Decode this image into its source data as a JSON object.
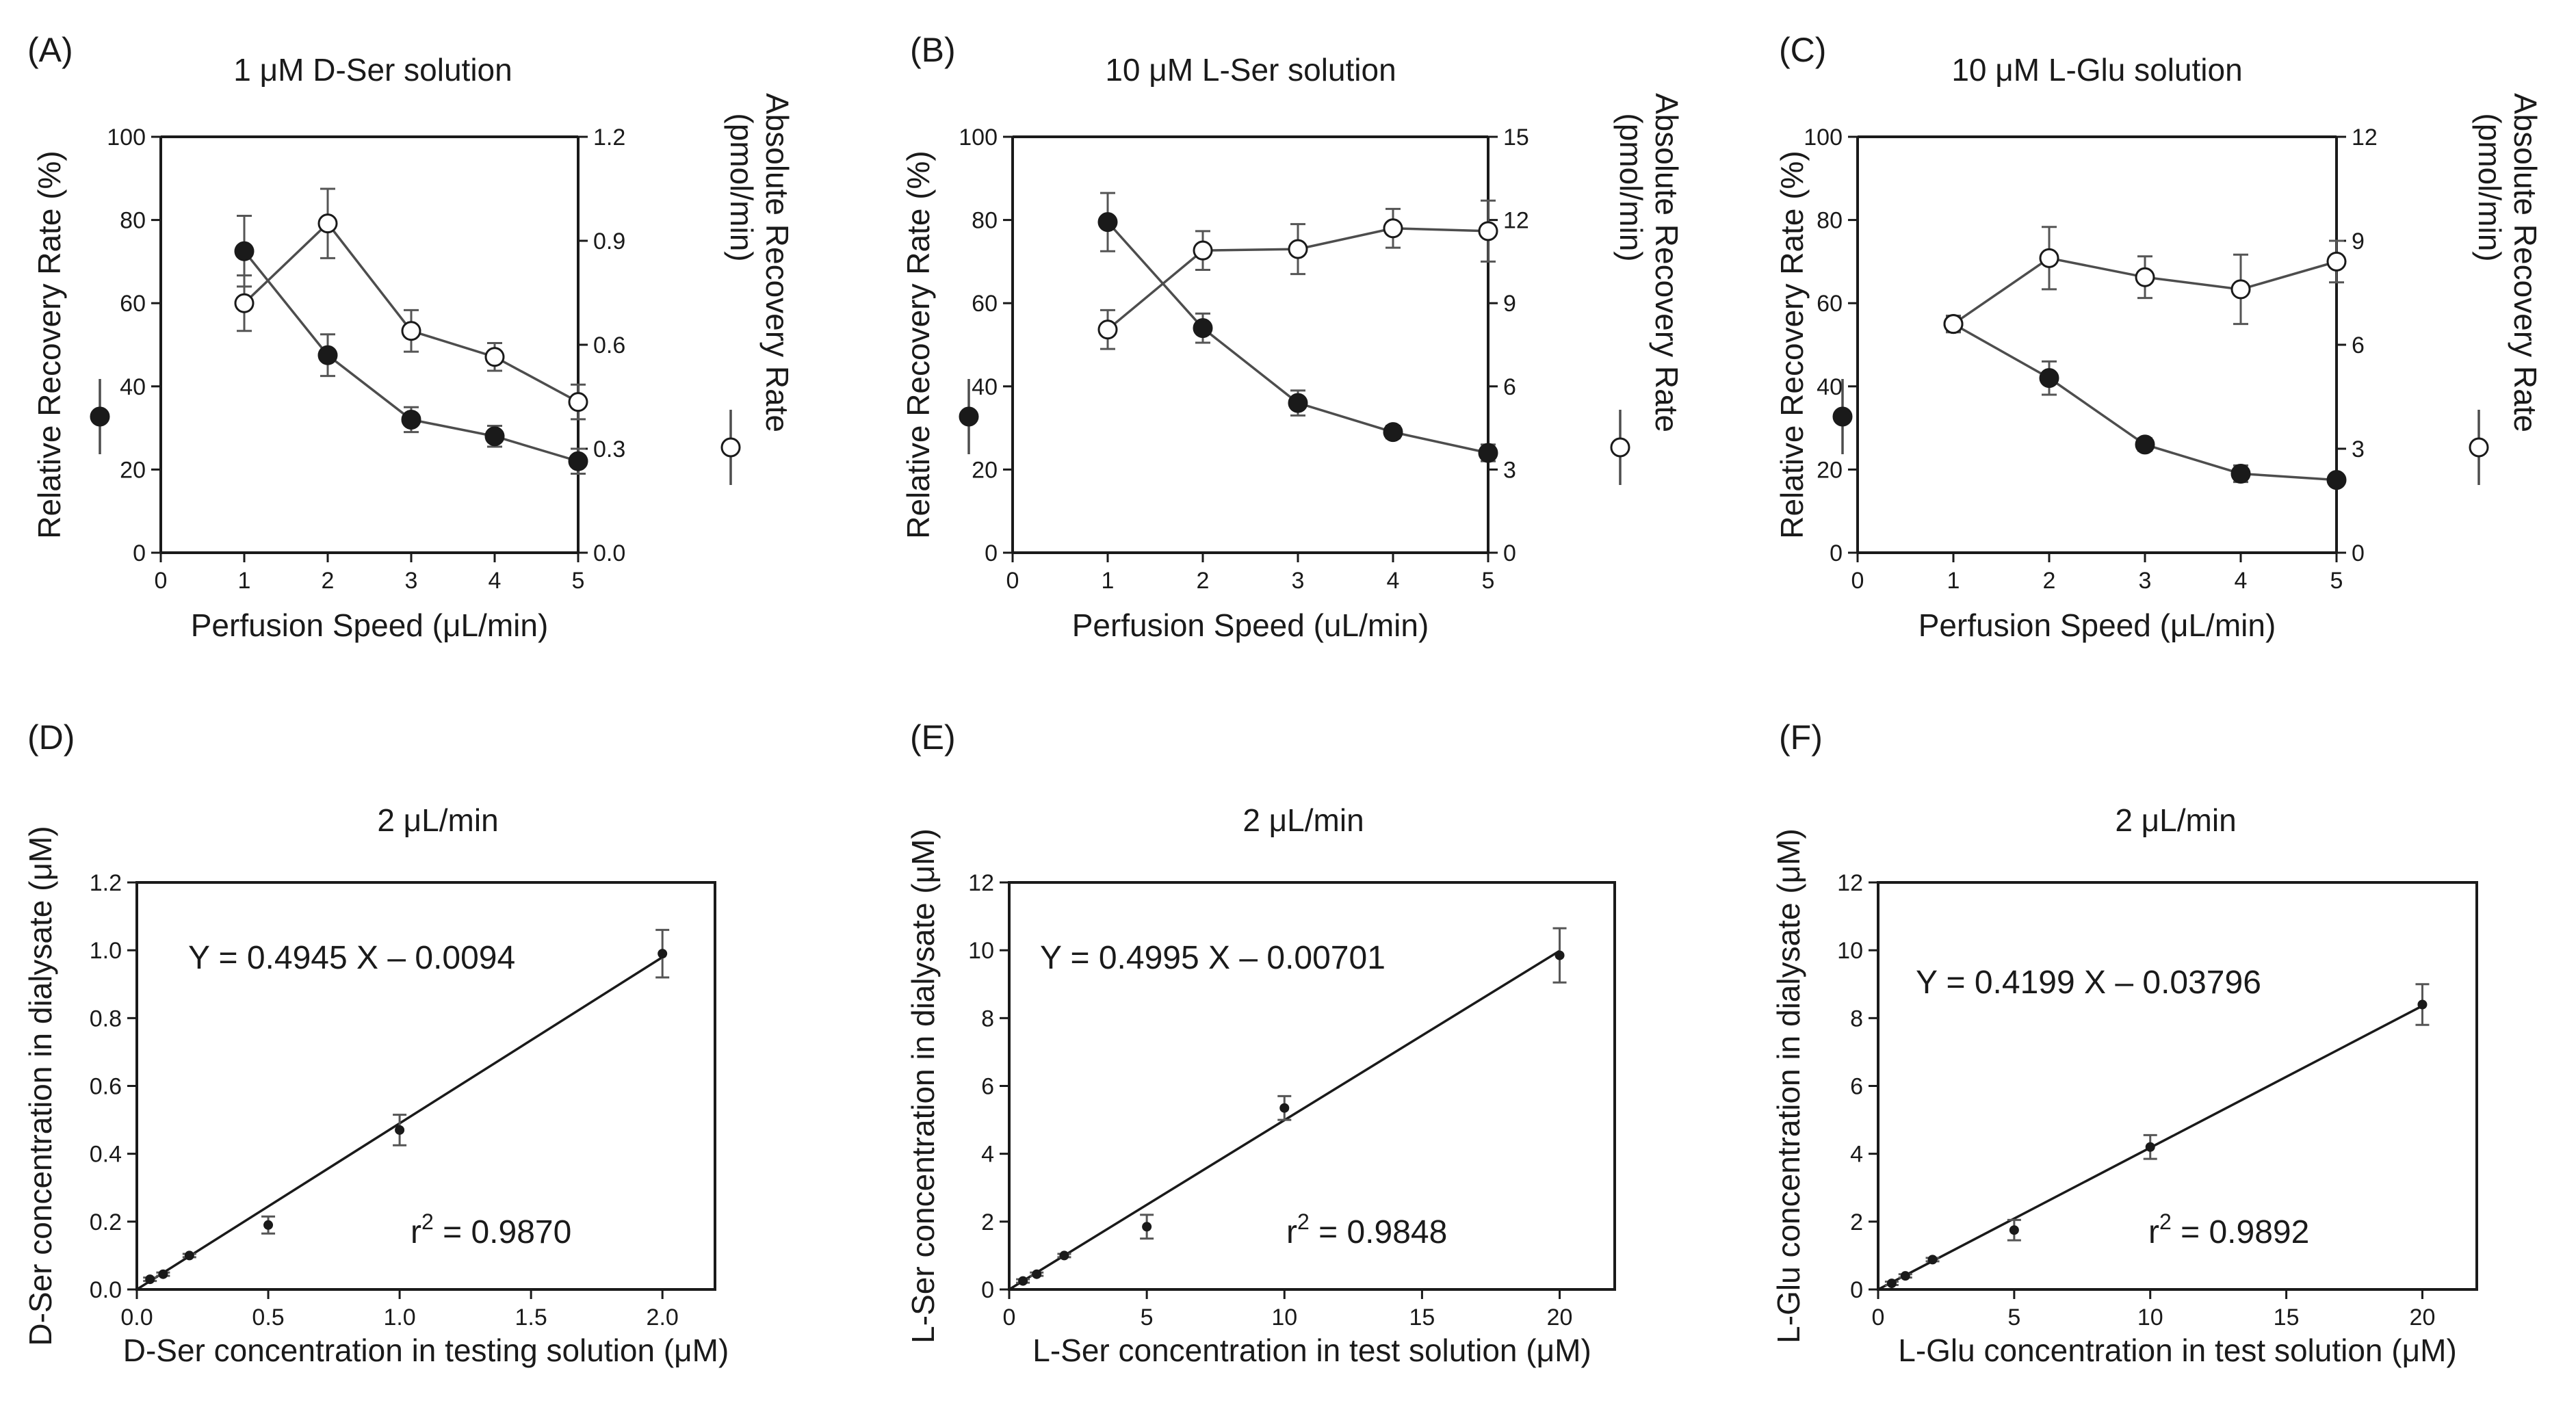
{
  "colors": {
    "ink": "#1a1a1a",
    "line": "#4d4d4d",
    "error_bar": "#555555",
    "background": "#ffffff"
  },
  "chart_data": [
    {
      "panel": "(A)",
      "type": "line",
      "title": "1 μM D-Ser solution",
      "xlabel": "Perfusion Speed (μL/min)",
      "ylabel": "Relative Recovery Rate (%)",
      "y2label_top": "Absolute Recovery Rate",
      "y2label_bottom": "(pmol/min)",
      "xlim": [
        0,
        5
      ],
      "xticks": [
        "0",
        "1",
        "2",
        "3",
        "4",
        "5"
      ],
      "ylim": [
        0,
        100
      ],
      "yticks": [
        "0",
        "20",
        "40",
        "60",
        "80",
        "100"
      ],
      "y2lim": [
        0,
        1.2
      ],
      "y2ticks": [
        "0.0",
        "0.3",
        "0.6",
        "0.9",
        "1.2"
      ],
      "series": [
        {
          "name": "Relative Recovery Rate",
          "axis": "left",
          "marker": "filled",
          "x": [
            1,
            2,
            3,
            4,
            5
          ],
          "y": [
            72.5,
            47.5,
            32,
            28,
            22
          ],
          "err": [
            8.5,
            5,
            3,
            2.5,
            3
          ]
        },
        {
          "name": "Absolute Recovery Rate",
          "axis": "right",
          "marker": "open",
          "x": [
            1,
            2,
            3,
            4,
            5
          ],
          "y": [
            0.72,
            0.95,
            0.64,
            0.565,
            0.435
          ],
          "err": [
            0.08,
            0.1,
            0.06,
            0.04,
            0.05
          ]
        }
      ]
    },
    {
      "panel": "(B)",
      "type": "line",
      "title": "10 μM L-Ser solution",
      "xlabel": "Perfusion Speed (uL/min)",
      "ylabel": "Relative Recovery Rate (%)",
      "y2label_top": "Absolute Recovery Rate",
      "y2label_bottom": "(pmol/min)",
      "xlim": [
        0,
        5
      ],
      "xticks": [
        "0",
        "1",
        "2",
        "3",
        "4",
        "5"
      ],
      "ylim": [
        0,
        100
      ],
      "yticks": [
        "0",
        "20",
        "40",
        "60",
        "80",
        "100"
      ],
      "y2lim": [
        0,
        15
      ],
      "y2ticks": [
        "0",
        "3",
        "6",
        "9",
        "12",
        "15"
      ],
      "series": [
        {
          "name": "Relative Recovery Rate",
          "axis": "left",
          "marker": "filled",
          "x": [
            1,
            2,
            3,
            4,
            5
          ],
          "y": [
            79.5,
            54,
            36,
            29,
            24
          ],
          "err": [
            7,
            3.5,
            3,
            1.5,
            2
          ]
        },
        {
          "name": "Absolute Recovery Rate",
          "axis": "right",
          "marker": "open",
          "x": [
            1,
            2,
            3,
            4,
            5
          ],
          "y": [
            8.05,
            10.9,
            10.95,
            11.7,
            11.6
          ],
          "err": [
            0.7,
            0.7,
            0.9,
            0.7,
            1.1
          ]
        }
      ]
    },
    {
      "panel": "(C)",
      "type": "line",
      "title": "10 μM L-Glu solution",
      "xlabel": "Perfusion Speed (μL/min)",
      "ylabel": "Relative Recovery Rate (%)",
      "y2label_top": "Absolute Recovery Rate",
      "y2label_bottom": "(pmol/min)",
      "xlim": [
        0,
        5
      ],
      "xticks": [
        "0",
        "1",
        "2",
        "3",
        "4",
        "5"
      ],
      "ylim": [
        0,
        100
      ],
      "yticks": [
        "0",
        "20",
        "40",
        "60",
        "80",
        "100"
      ],
      "y2lim": [
        0,
        12
      ],
      "y2ticks": [
        "0",
        "3",
        "6",
        "9",
        "12"
      ],
      "series": [
        {
          "name": "Relative Recovery Rate",
          "axis": "left",
          "marker": "filled",
          "x": [
            1,
            2,
            3,
            4,
            5
          ],
          "y": [
            55,
            42,
            26,
            19,
            17.5
          ],
          "err": [
            2,
            4,
            1.5,
            2,
            1
          ]
        },
        {
          "name": "Absolute Recovery Rate",
          "axis": "right",
          "marker": "open",
          "x": [
            1,
            2,
            3,
            4,
            5
          ],
          "y": [
            6.6,
            8.5,
            7.95,
            7.6,
            8.4
          ],
          "err": [
            0.2,
            0.9,
            0.6,
            1,
            0.6
          ]
        }
      ]
    },
    {
      "panel": "(D)",
      "type": "scatter",
      "title": "2 μL/min",
      "xlabel": "D-Ser concentration in testing solution (μM)",
      "ylabel": "D-Ser concentration in dialysate (μM)",
      "xlim": [
        0,
        2.2
      ],
      "xticks": [
        "0.0",
        "0.5",
        "1.0",
        "1.5",
        "2.0"
      ],
      "ylim": [
        0,
        1.2
      ],
      "yticks": [
        "0.0",
        "0.2",
        "0.4",
        "0.6",
        "0.8",
        "1.0",
        "1.2"
      ],
      "equation": "Y = 0.4945 X – 0.0094",
      "r2_prefix": "r",
      "r2_sup": "2",
      "r2_value": " = 0.9870",
      "fit": {
        "slope": 0.4945,
        "intercept": -0.0094,
        "x_range": [
          0,
          2.0
        ]
      },
      "points": {
        "x": [
          0.05,
          0.1,
          0.2,
          0.5,
          1.0,
          2.0
        ],
        "y": [
          0.03,
          0.045,
          0.1,
          0.19,
          0.47,
          0.99
        ],
        "err": [
          0.005,
          0.005,
          0.005,
          0.025,
          0.045,
          0.07
        ]
      }
    },
    {
      "panel": "(E)",
      "type": "scatter",
      "title": "2 μL/min",
      "xlabel": "L-Ser concentration in test solution (μM)",
      "ylabel": "L-Ser concentration in dialysate (μM)",
      "xlim": [
        0,
        22
      ],
      "xticks": [
        "0",
        "5",
        "10",
        "15",
        "20"
      ],
      "ylim": [
        0,
        12
      ],
      "yticks": [
        "0",
        "2",
        "4",
        "6",
        "8",
        "10",
        "12"
      ],
      "equation": "Y = 0.4995 X – 0.00701",
      "r2_prefix": "r",
      "r2_sup": "2",
      "r2_value": " = 0.9848",
      "fit": {
        "slope": 0.4995,
        "intercept": -0.00701,
        "x_range": [
          0,
          20
        ]
      },
      "points": {
        "x": [
          0.5,
          1,
          2,
          5,
          10,
          20
        ],
        "y": [
          0.25,
          0.45,
          1.0,
          1.85,
          5.35,
          9.85
        ],
        "err": [
          0.05,
          0.05,
          0.05,
          0.35,
          0.35,
          0.8
        ]
      }
    },
    {
      "panel": "(F)",
      "type": "scatter",
      "title": "2 μL/min",
      "xlabel": "L-Glu concentration in test solution (μM)",
      "ylabel": "L-Glu concentration in dialysate (μM)",
      "xlim": [
        0,
        22
      ],
      "xticks": [
        "0",
        "5",
        "10",
        "15",
        "20"
      ],
      "ylim": [
        0,
        12
      ],
      "yticks": [
        "0",
        "2",
        "4",
        "6",
        "8",
        "10",
        "12"
      ],
      "equation": "Y = 0.4199 X – 0.03796",
      "r2_prefix": "r",
      "r2_sup": "2",
      "r2_value": " = 0.9892",
      "fit": {
        "slope": 0.4199,
        "intercept": -0.03796,
        "x_range": [
          0,
          20
        ]
      },
      "points": {
        "x": [
          0.5,
          1,
          2,
          5,
          10,
          20
        ],
        "y": [
          0.18,
          0.4,
          0.88,
          1.75,
          4.2,
          8.4
        ],
        "err": [
          0.05,
          0.05,
          0.05,
          0.3,
          0.35,
          0.6
        ]
      }
    }
  ]
}
